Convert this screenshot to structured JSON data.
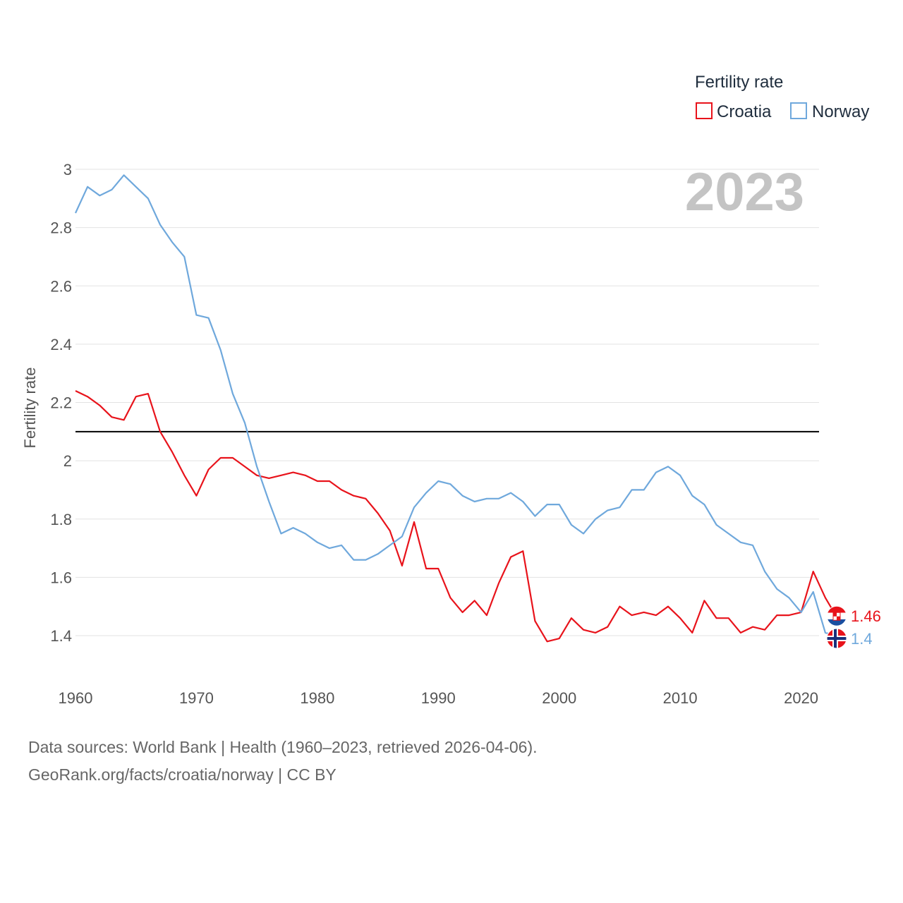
{
  "chart_data": {
    "type": "line",
    "ylabel": "Fertility rate",
    "xlabel": "",
    "xlim": [
      1960,
      2023
    ],
    "ylim": [
      1.25,
      3.0
    ],
    "yticks": [
      1.4,
      1.6,
      1.8,
      2,
      2.2,
      2.4,
      2.6,
      2.8,
      3
    ],
    "ytick_labels": [
      "1.4",
      "1.6",
      "1.8",
      "2",
      "2.2",
      "2.4",
      "2.6",
      "2.8",
      "3"
    ],
    "xticks": [
      1960,
      1970,
      1980,
      1990,
      2000,
      2010,
      2020
    ],
    "xtick_labels": [
      "1960",
      "1970",
      "1980",
      "1990",
      "2000",
      "2010",
      "2020"
    ],
    "grid": true,
    "reference_line": 2.1,
    "year_label": "2023",
    "legend": {
      "title": "Fertility rate",
      "position": "top-right",
      "entries": [
        "Croatia",
        "Norway"
      ]
    },
    "x": [
      1960,
      1961,
      1962,
      1963,
      1964,
      1965,
      1966,
      1967,
      1968,
      1969,
      1970,
      1971,
      1972,
      1973,
      1974,
      1975,
      1976,
      1977,
      1978,
      1979,
      1980,
      1981,
      1982,
      1983,
      1984,
      1985,
      1986,
      1987,
      1988,
      1989,
      1990,
      1991,
      1992,
      1993,
      1994,
      1995,
      1996,
      1997,
      1998,
      1999,
      2000,
      2001,
      2002,
      2003,
      2004,
      2005,
      2006,
      2007,
      2008,
      2009,
      2010,
      2011,
      2012,
      2013,
      2014,
      2015,
      2016,
      2017,
      2018,
      2019,
      2020,
      2021,
      2022,
      2023
    ],
    "series": [
      {
        "name": "Croatia",
        "color": "#e8131b",
        "end_label": "1.46",
        "values": [
          2.24,
          2.22,
          2.19,
          2.15,
          2.14,
          2.22,
          2.23,
          2.1,
          2.03,
          1.95,
          1.88,
          1.97,
          2.01,
          2.01,
          1.98,
          1.95,
          1.94,
          1.95,
          1.96,
          1.95,
          1.93,
          1.93,
          1.9,
          1.88,
          1.87,
          1.82,
          1.76,
          1.64,
          1.79,
          1.63,
          1.63,
          1.53,
          1.48,
          1.52,
          1.47,
          1.58,
          1.67,
          1.69,
          1.45,
          1.38,
          1.39,
          1.46,
          1.42,
          1.41,
          1.43,
          1.5,
          1.47,
          1.48,
          1.47,
          1.5,
          1.46,
          1.41,
          1.52,
          1.46,
          1.46,
          1.41,
          1.43,
          1.42,
          1.47,
          1.47,
          1.48,
          1.62,
          1.53,
          1.46
        ]
      },
      {
        "name": "Norway",
        "color": "#6fa8dc",
        "end_label": "1.4",
        "values": [
          2.85,
          2.94,
          2.91,
          2.93,
          2.98,
          2.94,
          2.9,
          2.81,
          2.75,
          2.7,
          2.5,
          2.49,
          2.38,
          2.23,
          2.13,
          1.98,
          1.86,
          1.75,
          1.77,
          1.75,
          1.72,
          1.7,
          1.71,
          1.66,
          1.66,
          1.68,
          1.71,
          1.74,
          1.84,
          1.89,
          1.93,
          1.92,
          1.88,
          1.86,
          1.87,
          1.87,
          1.89,
          1.86,
          1.81,
          1.85,
          1.85,
          1.78,
          1.75,
          1.8,
          1.83,
          1.84,
          1.9,
          1.9,
          1.96,
          1.98,
          1.95,
          1.88,
          1.85,
          1.78,
          1.75,
          1.72,
          1.71,
          1.62,
          1.56,
          1.53,
          1.48,
          1.55,
          1.41,
          1.4
        ]
      }
    ]
  },
  "source_lines": [
    "Data sources: World Bank | Health (1960–2023, retrieved 2026-04-06).",
    "GeoRank.org/facts/croatia/norway | CC BY"
  ]
}
